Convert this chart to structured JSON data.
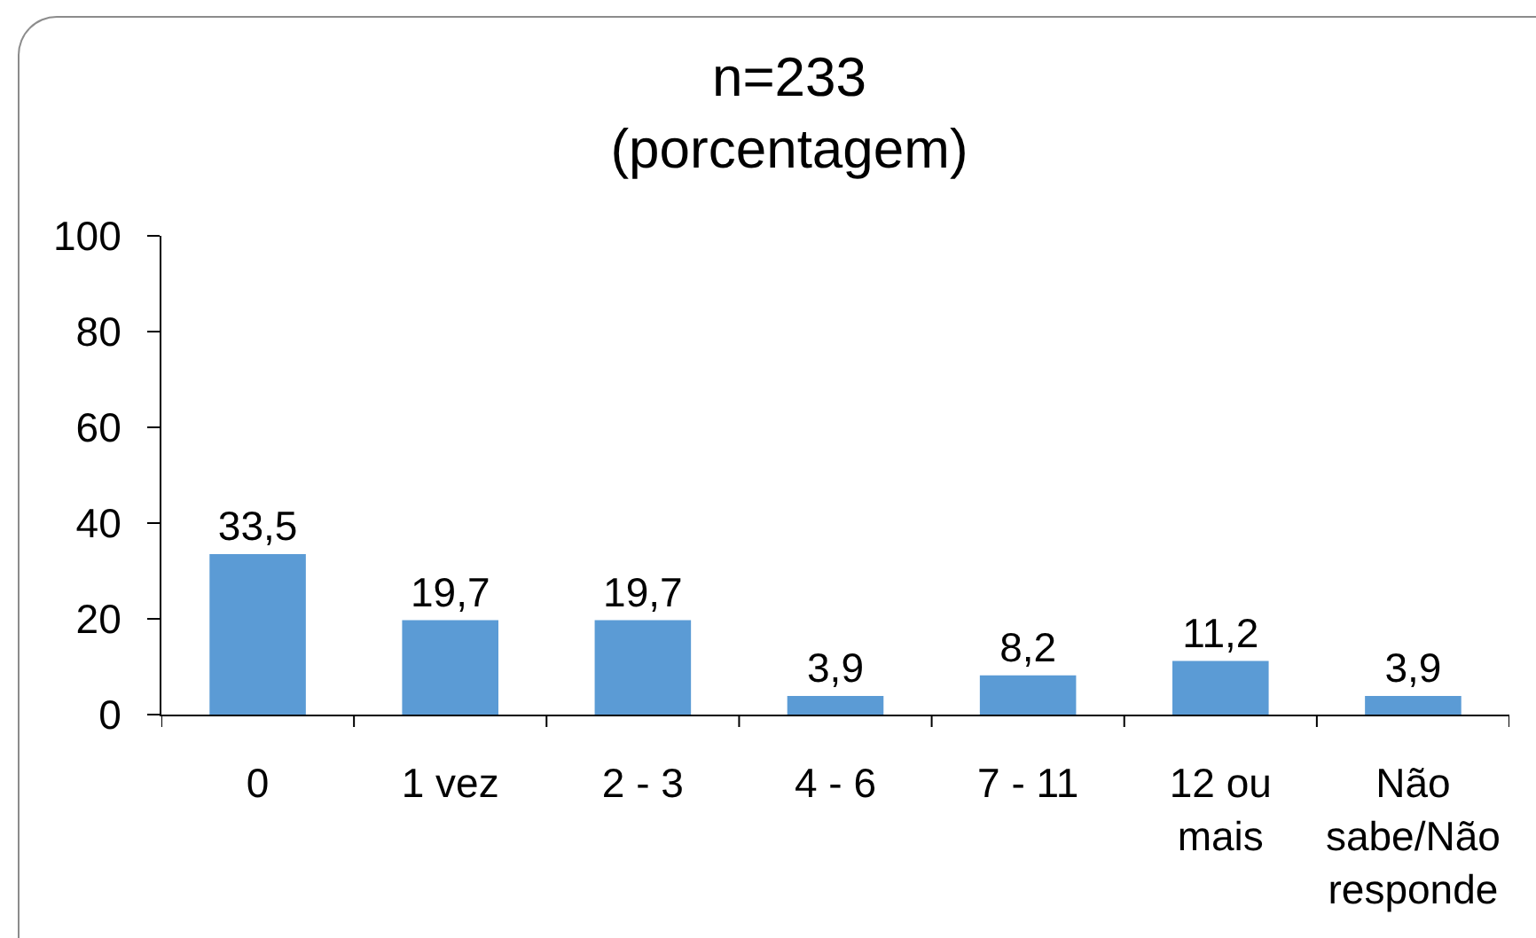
{
  "chart_data": {
    "type": "bar",
    "title": "n=233\n(porcentagem)",
    "categories": [
      "0",
      "1 vez",
      "2 - 3",
      "4 - 6",
      "7 - 11",
      "12 ou mais",
      "Não sabe/Não responde"
    ],
    "values": [
      33.5,
      19.7,
      19.7,
      3.9,
      8.2,
      11.2,
      3.9
    ],
    "value_labels": [
      "33,5",
      "19,7",
      "19,7",
      "3,9",
      "8,2",
      "11,2",
      "3,9"
    ],
    "color": "#5b9bd5",
    "ylim": [
      0,
      100
    ],
    "yticks": [
      0,
      20,
      40,
      60,
      80,
      100
    ]
  }
}
